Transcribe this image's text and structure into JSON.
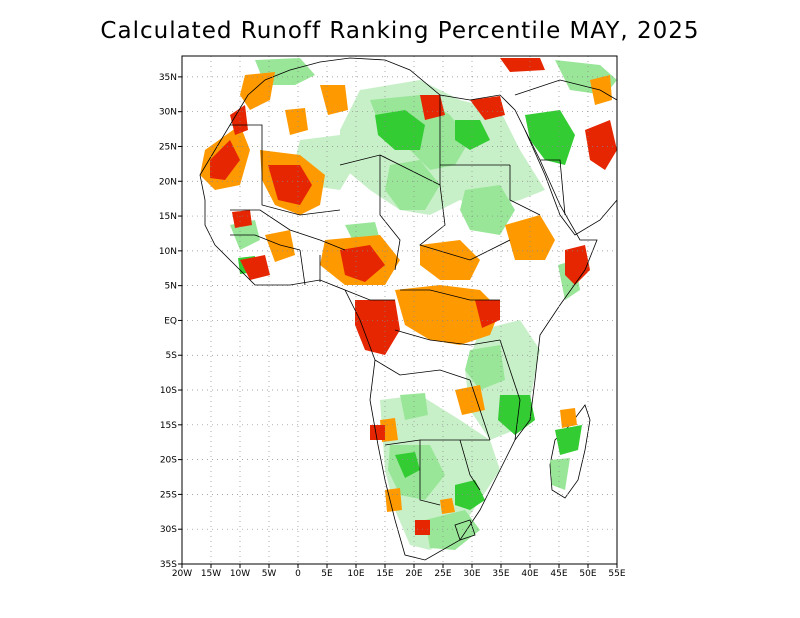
{
  "title": "Calculated Runoff Ranking Percentile MAY, 2025",
  "map": {
    "lon_range": [
      -20,
      55
    ],
    "lat_range": [
      -35,
      38
    ],
    "lat_ticks": [
      "35N",
      "30N",
      "25N",
      "20N",
      "15N",
      "10N",
      "5N",
      "EQ",
      "5S",
      "10S",
      "15S",
      "20S",
      "25S",
      "30S",
      "35S"
    ],
    "lon_ticks": [
      "20W",
      "15W",
      "10W",
      "5W",
      "0",
      "5E",
      "10E",
      "15E",
      "20E",
      "25E",
      "30E",
      "35E",
      "40E",
      "45E",
      "50E",
      "55E"
    ],
    "grid": "dotted",
    "colors": {
      "very_wet": "#33cc33",
      "wet": "#99e699",
      "light_wet": "#c8f0c8",
      "dry": "#ff9900",
      "very_dry": "#e62600"
    }
  }
}
